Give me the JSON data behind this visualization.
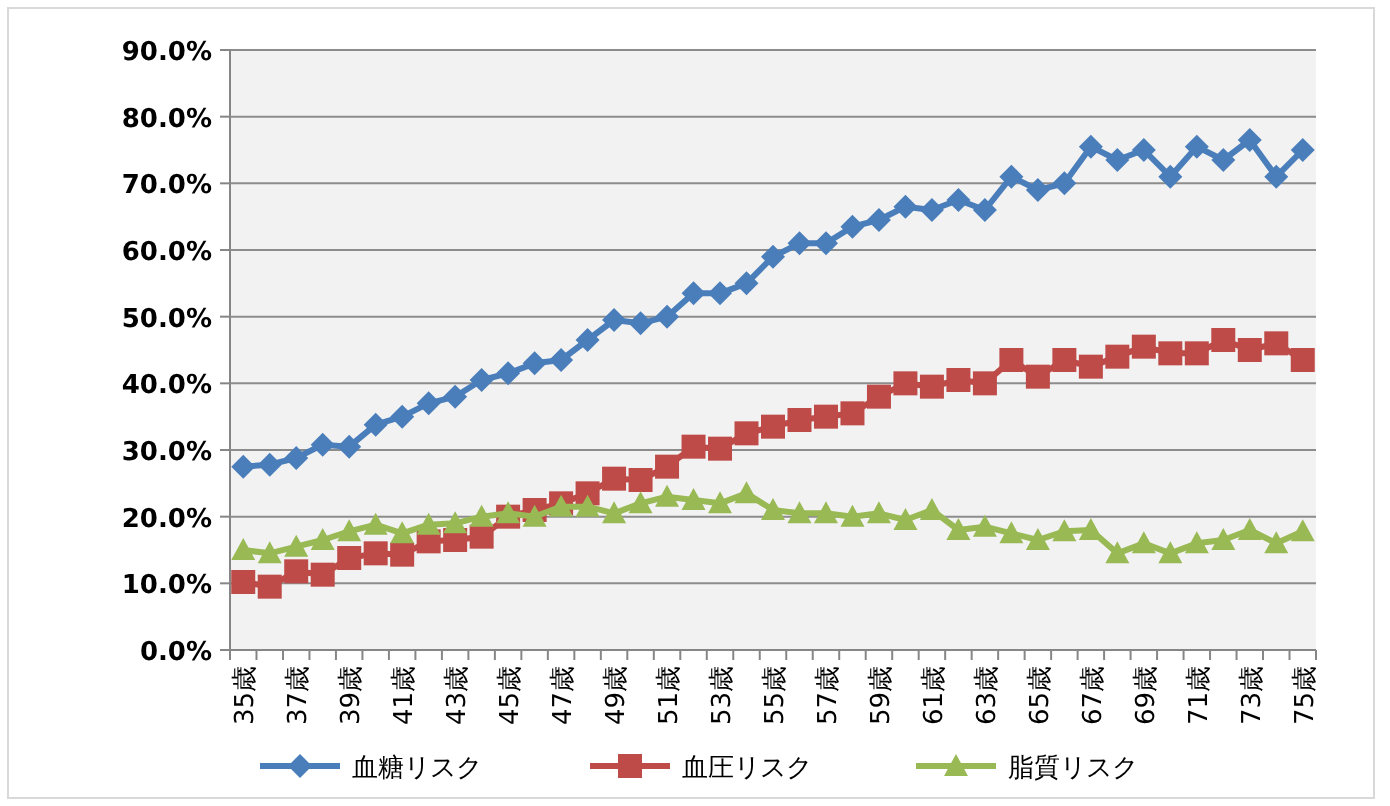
{
  "chart_data": {
    "type": "line",
    "categories": [
      "35歳",
      null,
      "37歳",
      null,
      "39歳",
      null,
      "41歳",
      null,
      "43歳",
      null,
      "45歳",
      null,
      "47歳",
      null,
      "49歳",
      null,
      "51歳",
      null,
      "53歳",
      null,
      "55歳",
      null,
      "57歳",
      null,
      "59歳",
      null,
      "61歳",
      null,
      "63歳",
      null,
      "65歳",
      null,
      "67歳",
      null,
      "69歳",
      null,
      "71歳",
      null,
      "73歳",
      null,
      "75歳"
    ],
    "series": [
      {
        "name": "血糖リスク",
        "color": "#4a7ebb",
        "marker": "diamond",
        "values": [
          27.5,
          27.8,
          28.8,
          30.8,
          30.5,
          33.8,
          35,
          37,
          38,
          40.5,
          41.5,
          43,
          43.5,
          46.5,
          49.5,
          49,
          50,
          53.5,
          53.5,
          55,
          59,
          61,
          61,
          63.5,
          64.5,
          66.5,
          66,
          67.5,
          66,
          71,
          69,
          70,
          75.5,
          73.5,
          75,
          71,
          75.5,
          73.5,
          76.5,
          71,
          75
        ]
      },
      {
        "name": "血圧リスク",
        "color": "#be4b48",
        "marker": "square",
        "values": [
          10.2,
          9.5,
          11.8,
          11.3,
          13.8,
          14.5,
          14.3,
          16.3,
          16.5,
          17,
          20,
          21,
          22,
          23.5,
          25.7,
          25.5,
          27.5,
          30.5,
          30.2,
          32.5,
          33.5,
          34.5,
          35,
          35.5,
          38,
          40,
          39.5,
          40.5,
          40,
          43.5,
          41,
          43.5,
          42.5,
          44,
          45.5,
          44.5,
          44.5,
          46.5,
          45,
          46,
          43.5
        ]
      },
      {
        "name": "脂質リスク",
        "color": "#98b954",
        "marker": "triangle",
        "values": [
          15,
          14.5,
          15.5,
          16.5,
          17.8,
          18.8,
          17.5,
          18.8,
          19,
          20,
          20.5,
          20,
          21.5,
          21.5,
          20.5,
          22,
          23,
          22.5,
          22,
          23.5,
          21,
          20.5,
          20.5,
          20,
          20.5,
          19.5,
          21,
          18,
          18.5,
          17.5,
          16.5,
          17.8,
          18,
          14.5,
          16,
          14.5,
          16,
          16.5,
          18,
          16,
          17.8
        ]
      }
    ],
    "ylim": [
      0,
      90
    ],
    "yticks": [
      {
        "value": 0,
        "label": "0.0%"
      },
      {
        "value": 10,
        "label": "10.0%"
      },
      {
        "value": 20,
        "label": "20.0%"
      },
      {
        "value": 30,
        "label": "30.0%"
      },
      {
        "value": 40,
        "label": "40.0%"
      },
      {
        "value": 50,
        "label": "50.0%"
      },
      {
        "value": 60,
        "label": "60.0%"
      },
      {
        "value": 70,
        "label": "70.0%"
      },
      {
        "value": 80,
        "label": "80.0%"
      },
      {
        "value": 90,
        "label": "90.0%"
      }
    ],
    "grid": "y",
    "legend": "bottom"
  }
}
